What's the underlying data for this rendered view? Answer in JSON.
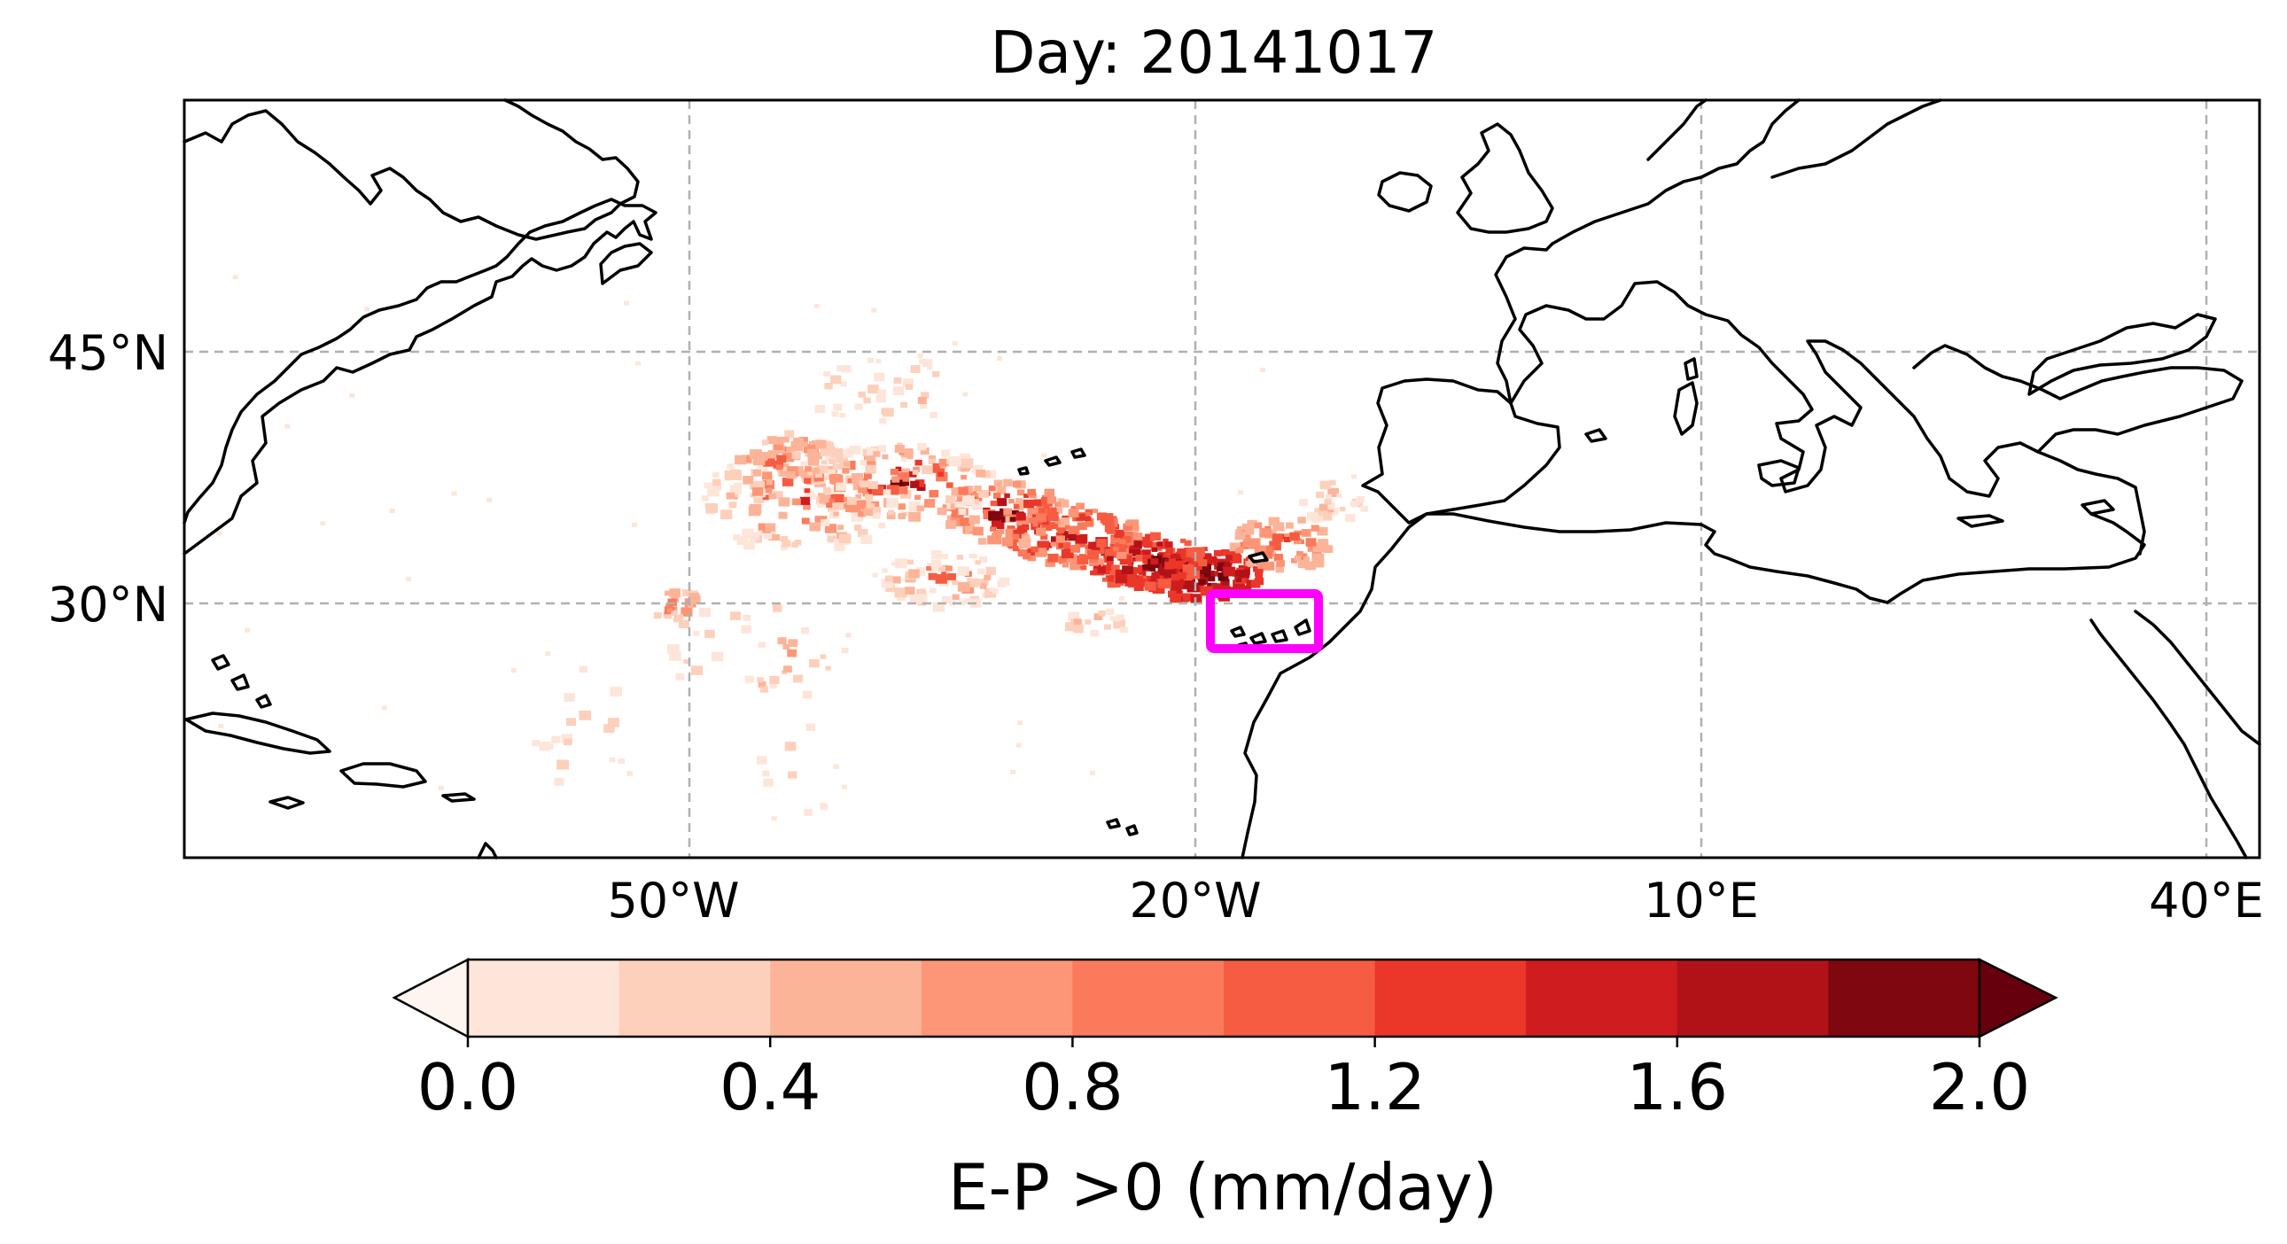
{
  "map": {
    "title": "Day: 20141017",
    "lat_labels": [
      "45°N",
      "30°N"
    ],
    "lon_labels": [
      "50°W",
      "20°W",
      "10°E",
      "40°E"
    ],
    "gridlines": true,
    "highlight_box_color": "#ff00ff",
    "highlight_region": "Canary Islands"
  },
  "colorbar": {
    "label": "E-P >0 (mm/day)",
    "tick_labels": [
      "0.0",
      "0.4",
      "0.8",
      "1.2",
      "1.6",
      "2.0"
    ],
    "levels": [
      0.0,
      0.2,
      0.4,
      0.6,
      0.8,
      1.0,
      1.2,
      1.4,
      1.6,
      1.8,
      2.0
    ],
    "colors": [
      "#fee5d9",
      "#fdd0bb",
      "#fcb499",
      "#fc9677",
      "#fb7a5c",
      "#f65c42",
      "#ea372a",
      "#cf1c1f",
      "#b01218",
      "#7f0710",
      "#67000d"
    ],
    "extend": "both",
    "under_color": "#fff5f0",
    "over_color": "#67000d"
  },
  "chart_data": {
    "type": "heatmap",
    "title": "Day: 20141017",
    "field_label": "E-P >0 (mm/day)",
    "xlim_lon": [
      -80,
      43
    ],
    "ylim_lat": [
      15,
      60
    ],
    "notable_region": {
      "name": "E-P maximum band",
      "lon_range": [
        -40,
        -15
      ],
      "lat_range": [
        29,
        39
      ],
      "max_value": 2.0
    }
  }
}
